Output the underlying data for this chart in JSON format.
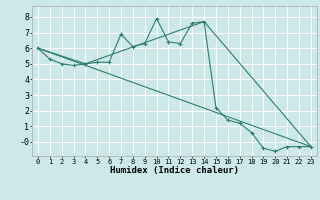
{
  "title": "",
  "xlabel": "Humidex (Indice chaleur)",
  "bg_color": "#cde8e8",
  "grid_color": "#ffffff",
  "line_color": "#2e7d6e",
  "xlim": [
    -0.5,
    23.5
  ],
  "ylim": [
    -0.9,
    8.7
  ],
  "xticks": [
    0,
    1,
    2,
    3,
    4,
    5,
    6,
    7,
    8,
    9,
    10,
    11,
    12,
    13,
    14,
    15,
    16,
    17,
    18,
    19,
    20,
    21,
    22,
    23
  ],
  "yticks": [
    0,
    1,
    2,
    3,
    4,
    5,
    6,
    7,
    8
  ],
  "ytick_labels": [
    "-0",
    "1",
    "2",
    "3",
    "4",
    "5",
    "6",
    "7",
    "8"
  ],
  "line1_x": [
    0,
    1,
    2,
    3,
    4,
    5,
    6,
    7,
    8,
    9,
    10,
    11,
    12,
    13,
    14,
    15,
    16,
    17,
    18,
    19,
    20,
    21,
    22,
    23
  ],
  "line1_y": [
    6.0,
    5.3,
    5.0,
    4.9,
    5.0,
    5.1,
    5.1,
    6.9,
    6.1,
    6.3,
    7.9,
    6.4,
    6.3,
    7.6,
    7.7,
    2.2,
    1.4,
    1.2,
    0.6,
    -0.4,
    -0.6,
    -0.3,
    -0.3,
    -0.3
  ],
  "line2_x": [
    0,
    4,
    14,
    23
  ],
  "line2_y": [
    6.0,
    5.0,
    7.7,
    -0.3
  ],
  "line3_x": [
    0,
    23
  ],
  "line3_y": [
    6.0,
    -0.3
  ],
  "xlabel_fontsize": 6.5,
  "ytick_fontsize": 6.0,
  "xtick_fontsize": 5.0
}
